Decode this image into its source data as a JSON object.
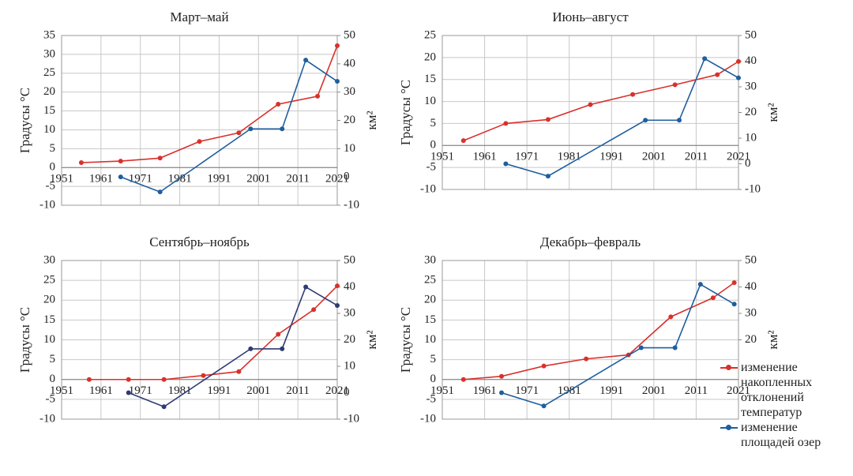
{
  "chart_data": [
    {
      "type": "line",
      "title": "Март–май",
      "ylabel": "Градусы °C",
      "y2label": "км²",
      "xlim": [
        1951,
        2021
      ],
      "xticks": [
        1951,
        1961,
        1971,
        1981,
        1991,
        2001,
        2011,
        2021
      ],
      "ylim": [
        -10,
        35
      ],
      "yticks": [
        -10,
        -5,
        0,
        5,
        10,
        15,
        20,
        25,
        30,
        35
      ],
      "y2lim": [
        -10,
        50
      ],
      "y2ticks": [
        -10,
        0,
        10,
        20,
        30,
        40,
        50
      ],
      "grid": true,
      "series": [
        {
          "name": "изменение накопленных отклонений температур",
          "color": "#d9312b",
          "x": [
            1956,
            1966,
            1976,
            1986,
            1996,
            2006,
            2016,
            2021
          ],
          "values": [
            1.3,
            1.7,
            2.5,
            6.9,
            9.2,
            16.8,
            18.9,
            32.3
          ]
        },
        {
          "name": "изменение площадей озер",
          "color": "#1f5f9e",
          "axis": "y2",
          "x": [
            1966,
            1976,
            1999,
            2007,
            2013,
            2021
          ],
          "values": [
            0,
            -5.3,
            17,
            17,
            41.3,
            33.8
          ]
        }
      ]
    },
    {
      "type": "line",
      "title": "Июнь–август",
      "ylabel": "Градусы °C",
      "y2label": "км²",
      "xlim": [
        1951,
        2021
      ],
      "xticks": [
        1951,
        1961,
        1971,
        1981,
        1991,
        2001,
        2011,
        2021
      ],
      "ylim": [
        -10,
        25
      ],
      "yticks": [
        -10,
        -5,
        0,
        5,
        10,
        15,
        20,
        25
      ],
      "y2lim": [
        -10,
        50
      ],
      "y2ticks": [
        -10,
        0,
        10,
        20,
        30,
        40,
        50
      ],
      "grid": true,
      "series": [
        {
          "name": "изменение накопленных отклонений температур",
          "color": "#d9312b",
          "x": [
            1956,
            1966,
            1976,
            1986,
            1996,
            2006,
            2016,
            2021
          ],
          "values": [
            1.1,
            5,
            5.9,
            9.3,
            11.6,
            13.8,
            16.1,
            19.1
          ]
        },
        {
          "name": "изменение площадей озер",
          "color": "#1f5f9e",
          "axis": "y2",
          "x": [
            1966,
            1976,
            1999,
            2007,
            2013,
            2021
          ],
          "values": [
            0,
            -4.8,
            17,
            17,
            41,
            33.5
          ]
        }
      ]
    },
    {
      "type": "line",
      "title": "Сентябрь–ноябрь",
      "ylabel": "Градусы °C",
      "y2label": "км²",
      "xlim": [
        1951,
        2021
      ],
      "xticks": [
        1951,
        1961,
        1971,
        1981,
        1991,
        2001,
        2011,
        2021
      ],
      "ylim": [
        -10,
        30
      ],
      "yticks": [
        -10,
        -5,
        0,
        5,
        10,
        15,
        20,
        25,
        30
      ],
      "y2lim": [
        -10,
        50
      ],
      "y2ticks": [
        -10,
        0,
        10,
        20,
        30,
        40,
        50
      ],
      "grid": true,
      "series": [
        {
          "name": "изменение накопленных отклонений температур",
          "color": "#d9312b",
          "x": [
            1958,
            1968,
            1977,
            1987,
            1996,
            2006,
            2015,
            2021
          ],
          "values": [
            0,
            0,
            0,
            1,
            2,
            11.4,
            17.6,
            23.6
          ]
        },
        {
          "name": "изменение площадей озер",
          "color": "#2e3b73",
          "axis": "y2",
          "x": [
            1968,
            1977,
            1999,
            2007,
            2013,
            2021
          ],
          "values": [
            0,
            -5.3,
            16.6,
            16.6,
            40,
            33
          ]
        }
      ]
    },
    {
      "type": "line",
      "title": "Декабрь–февраль",
      "ylabel": "Градусы °C",
      "y2label": "км²",
      "xlim": [
        1951,
        2021
      ],
      "xticks": [
        1951,
        1961,
        1971,
        1981,
        1991,
        2001,
        2011,
        2021
      ],
      "ylim": [
        -10,
        30
      ],
      "yticks": [
        -10,
        -5,
        0,
        5,
        10,
        15,
        20,
        25,
        30
      ],
      "y2lim": [
        -10,
        50
      ],
      "y2ticks": [
        20,
        30,
        40,
        50
      ],
      "grid": true,
      "series": [
        {
          "name": "изменение накопленных отклонений температур",
          "color": "#d9312b",
          "x": [
            1956,
            1965,
            1975,
            1985,
            1995,
            2005,
            2015,
            2020
          ],
          "values": [
            0,
            0.8,
            3.4,
            5.2,
            6.2,
            15.8,
            20.6,
            24.4
          ]
        },
        {
          "name": "изменение площадей озер",
          "color": "#1f5f9e",
          "axis": "y2",
          "x": [
            1965,
            1975,
            1998,
            2006,
            2012,
            2020
          ],
          "values": [
            0,
            -5,
            17,
            17,
            41,
            33.5
          ]
        }
      ]
    }
  ]
}
